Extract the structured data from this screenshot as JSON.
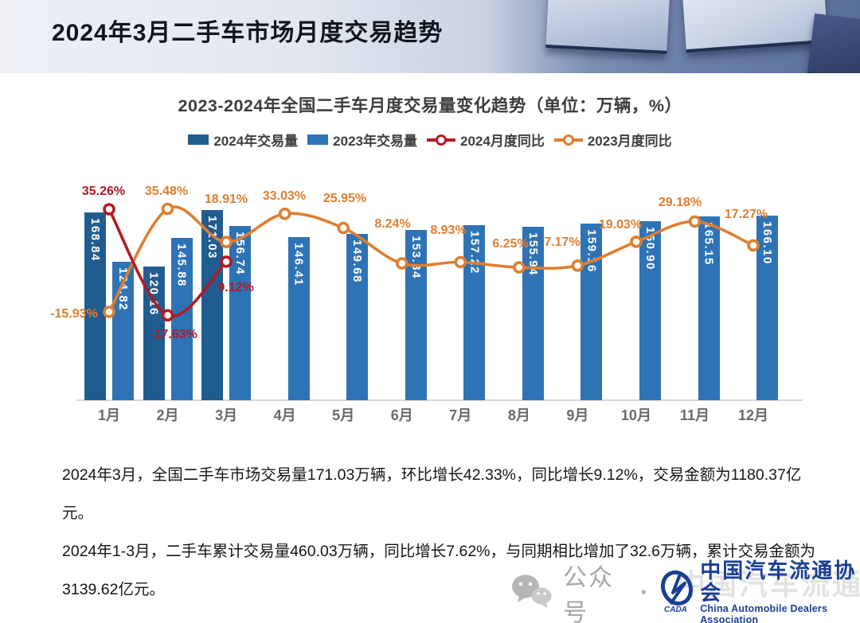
{
  "header": {
    "title": "2024年3月二手车市场月度交易趋势"
  },
  "chart": {
    "title": "2023-2024年全国二手车月度交易量变化趋势（单位：万辆，%）",
    "legend": [
      {
        "label": "2024年交易量",
        "type": "swatch",
        "color": "#215C90"
      },
      {
        "label": "2023年交易量",
        "type": "swatch",
        "color": "#2E73B5"
      },
      {
        "label": "2024月度同比",
        "type": "line",
        "color": "#B31A23"
      },
      {
        "label": "2023月度同比",
        "type": "line",
        "color": "#DF7E30"
      }
    ]
  },
  "chart_data": {
    "type": "bar+line",
    "title": "2023-2024年全国二手车月度交易量变化趋势",
    "unit_note": "单位：万辆，%",
    "categories": [
      "1月",
      "2月",
      "3月",
      "4月",
      "5月",
      "6月",
      "7月",
      "8月",
      "9月",
      "10月",
      "11月",
      "12月"
    ],
    "series": [
      {
        "name": "2024年交易量",
        "type": "bar",
        "color": "#215C90",
        "values": [
          168.84,
          120.16,
          171.03,
          null,
          null,
          null,
          null,
          null,
          null,
          null,
          null,
          null
        ]
      },
      {
        "name": "2023年交易量",
        "type": "bar",
        "color": "#2E73B5",
        "values": [
          124.82,
          145.88,
          156.74,
          146.41,
          149.68,
          153.34,
          157.22,
          155.94,
          159.16,
          160.9,
          165.15,
          166.1
        ]
      },
      {
        "name": "2024月度同比",
        "type": "line",
        "color": "#B31A23",
        "values": [
          35.26,
          -17.63,
          9.12,
          null,
          null,
          null,
          null,
          null,
          null,
          null,
          null,
          null
        ]
      },
      {
        "name": "2023月度同比",
        "type": "line",
        "color": "#DF7E30",
        "values": [
          -15.93,
          35.48,
          18.91,
          33.03,
          25.95,
          8.24,
          8.93,
          6.25,
          7.17,
          19.03,
          29.18,
          17.27
        ]
      }
    ],
    "legend_position": "top",
    "grid": false,
    "value_labels": "inside-bar-vertical, percent labels near line markers"
  },
  "summary": {
    "p1": "2024年3月，全国二手车市场交易量171.03万辆，环比增长42.33%，同比增长9.12%，交易金额为1180.37亿元。",
    "p2": "2024年1-3月，二手车累计交易量460.03万辆，同比增长7.62%，与同期相比增加了32.6万辆，累计交易金额为3139.62亿元。"
  },
  "footer": {
    "wechat_label": "公众号",
    "separator": "·",
    "org_cn": "中国汽车流通协会",
    "org_en": "China Automobile Dealers Association",
    "logo_text": "CADA"
  }
}
